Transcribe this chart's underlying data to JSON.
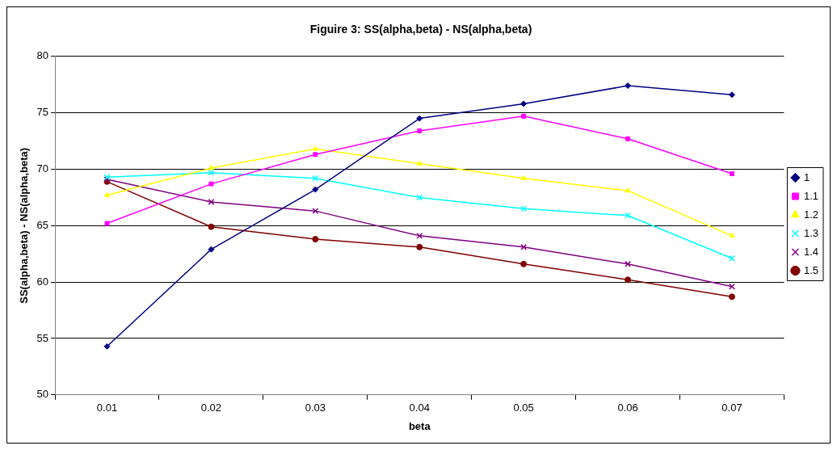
{
  "chart_data": {
    "type": "line",
    "title": "Figuire 3: SS(alpha,beta) - NS(alpha,beta)",
    "xlabel": "beta",
    "ylabel": "SS(alpha,beta) - NS(alpha,beta)",
    "categories": [
      "0.01",
      "0.02",
      "0.03",
      "0.04",
      "0.05",
      "0.06",
      "0.07"
    ],
    "ylim": [
      50,
      80
    ],
    "yticks": [
      50,
      55,
      60,
      65,
      70,
      75,
      80
    ],
    "grid": "y",
    "legend": "right",
    "line_style": "solid",
    "series": [
      {
        "name": "1",
        "color": "#000080",
        "marker": "diamond",
        "values": [
          54.3,
          62.9,
          68.2,
          74.5,
          75.8,
          77.4,
          76.6
        ]
      },
      {
        "name": "1.1",
        "color": "#ff00ff",
        "marker": "square",
        "values": [
          65.2,
          68.7,
          71.3,
          73.4,
          74.7,
          72.7,
          69.6
        ]
      },
      {
        "name": "1.2",
        "color": "#ffff00",
        "marker": "triangle",
        "values": [
          67.7,
          70.1,
          71.8,
          70.5,
          69.2,
          68.1,
          64.1
        ]
      },
      {
        "name": "1.3",
        "color": "#00ffff",
        "marker": "cross",
        "values": [
          69.3,
          69.7,
          69.2,
          67.5,
          66.5,
          65.9,
          62.1
        ]
      },
      {
        "name": "1.4",
        "color": "#800080",
        "marker": "cross",
        "values": [
          69.1,
          67.1,
          66.3,
          64.1,
          63.1,
          61.6,
          59.6
        ]
      },
      {
        "name": "1.5",
        "color": "#800000",
        "marker": "circle",
        "values": [
          68.9,
          64.9,
          63.8,
          63.1,
          61.6,
          60.2,
          58.7
        ]
      }
    ]
  }
}
